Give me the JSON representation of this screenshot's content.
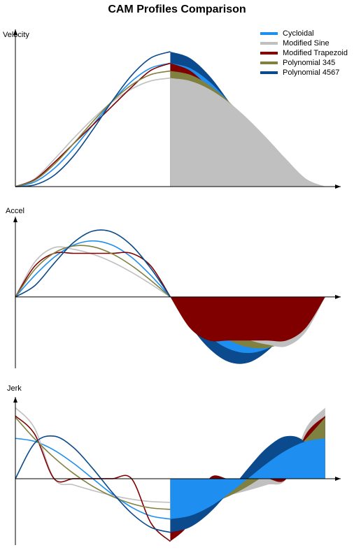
{
  "title": "CAM Profiles Comparison",
  "chart_data": [
    {
      "type": "line",
      "ylabel": "Velocity",
      "legend": "upper right",
      "xlim": [
        0,
        1.05
      ],
      "ylim": [
        0,
        2.55
      ],
      "x": [
        0,
        0.0625,
        0.125,
        0.1875,
        0.25,
        0.3125,
        0.375,
        0.4375,
        0.5,
        0.5625,
        0.625,
        0.6875,
        0.75,
        0.8125,
        0.875,
        0.9375,
        1
      ],
      "series": [
        {
          "name": "Cycloidal",
          "color": "#1e8ff0",
          "values": [
            0,
            0.076,
            0.293,
            0.617,
            1,
            1.383,
            1.707,
            1.924,
            2,
            1.924,
            1.707,
            1.383,
            1,
            0.617,
            0.293,
            0.076,
            0
          ]
        },
        {
          "name": "Modified Sine",
          "color": "#c0c0c0",
          "values": [
            0,
            0.129,
            0.44,
            0.781,
            1.1,
            1.373,
            1.583,
            1.715,
            1.76,
            1.715,
            1.583,
            1.373,
            1.1,
            0.781,
            0.44,
            0.129,
            0
          ]
        },
        {
          "name": "Modified Trapezoid",
          "color": "#800000",
          "values": [
            0,
            0.114,
            0.389,
            0.695,
            1,
            1.306,
            1.611,
            1.886,
            2,
            1.886,
            1.611,
            1.306,
            1,
            0.695,
            0.389,
            0.114,
            0
          ]
        },
        {
          "name": "Polynomial 345",
          "color": "#808040",
          "values": [
            0,
            0.103,
            0.359,
            0.696,
            1.055,
            1.385,
            1.648,
            1.817,
            1.875,
            1.817,
            1.648,
            1.385,
            1.055,
            0.696,
            0.359,
            0.103,
            0
          ]
        },
        {
          "name": "Polynomial 4567",
          "color": "#0b4a8c",
          "values": [
            0,
            0.028,
            0.183,
            0.495,
            0.923,
            1.388,
            1.803,
            2.087,
            2.188,
            2.087,
            1.803,
            1.388,
            0.923,
            0.495,
            0.183,
            0.028,
            0
          ]
        }
      ]
    },
    {
      "type": "line",
      "ylabel": "Accel",
      "xlim": [
        0,
        1.05
      ],
      "ylim": [
        -8,
        9
      ],
      "x": [
        0,
        0.0625,
        0.125,
        0.1875,
        0.25,
        0.3125,
        0.375,
        0.4375,
        0.5,
        0.5625,
        0.625,
        0.6875,
        0.75,
        0.8125,
        0.875,
        0.9375,
        1
      ],
      "series": [
        {
          "name": "Cycloidal",
          "color": "#1e8ff0",
          "values": [
            0,
            2.405,
            4.443,
            5.805,
            6.283,
            5.805,
            4.443,
            2.405,
            0,
            -2.405,
            -4.443,
            -5.805,
            -6.283,
            -5.805,
            -4.443,
            -2.405,
            0
          ]
        },
        {
          "name": "Modified Sine",
          "color": "#c0c0c0",
          "values": [
            0,
            3.909,
            5.528,
            5.34,
            4.787,
            3.909,
            2.764,
            1.431,
            0,
            -1.431,
            -2.764,
            -3.909,
            -4.787,
            -5.34,
            -5.528,
            -3.909,
            0
          ]
        },
        {
          "name": "Modified Trapezoid",
          "color": "#800000",
          "values": [
            0,
            3.456,
            4.888,
            4.888,
            4.888,
            4.888,
            4.888,
            3.456,
            0,
            -3.456,
            -4.888,
            -4.888,
            -4.888,
            -4.888,
            -4.888,
            -3.456,
            0
          ]
        },
        {
          "name": "Polynomial 345",
          "color": "#808040",
          "values": [
            0,
            3.076,
            4.922,
            5.713,
            5.625,
            4.834,
            3.516,
            1.846,
            0,
            -1.846,
            -3.516,
            -4.834,
            -5.625,
            -5.713,
            -4.922,
            -3.076,
            0
          ]
        },
        {
          "name": "Polynomial 4567",
          "color": "#0b4a8c",
          "values": [
            0,
            1.262,
            3.768,
            6.092,
            7.383,
            7.27,
            5.768,
            3.18,
            0,
            -3.18,
            -5.768,
            -7.27,
            -7.383,
            -6.092,
            -3.768,
            -1.262,
            0
          ]
        }
      ]
    },
    {
      "type": "line",
      "ylabel": "Jerk",
      "xlim": [
        0,
        1.05
      ],
      "ylim": [
        -65,
        80
      ],
      "x": [
        0,
        0.0625,
        0.125,
        0.1875,
        0.25,
        0.3125,
        0.375,
        0.4375,
        0.5,
        0.5625,
        0.625,
        0.6875,
        0.75,
        0.8125,
        0.875,
        0.9375,
        1
      ],
      "series": [
        {
          "name": "Cycloidal",
          "color": "#1e8ff0",
          "values": [
            39.48,
            36.47,
            27.92,
            15.11,
            0,
            -15.11,
            -27.92,
            -36.47,
            -39.48,
            -36.47,
            -27.92,
            -15.11,
            0,
            15.11,
            27.92,
            36.47,
            39.48
          ]
        },
        {
          "name": "Modified Sine",
          "color": "#c0c0c0",
          "values": [
            69.47,
            49.12,
            0,
            -5.99,
            -11.58,
            -16.38,
            -20.06,
            -22.37,
            -23.16,
            -22.37,
            -20.06,
            -16.38,
            -11.58,
            -5.99,
            0,
            49.12,
            69.47
          ]
        },
        {
          "name": "Modified Trapezoid",
          "color": "#800000",
          "values": [
            61.42,
            43.43,
            0,
            0,
            0,
            0,
            0,
            -43.43,
            -61.42,
            -43.43,
            0,
            0,
            0,
            0,
            0,
            43.43,
            61.42
          ]
        },
        {
          "name": "Polynomial 345",
          "color": "#808040",
          "values": [
            60,
            38.91,
            20.63,
            5.16,
            -7.5,
            -17.34,
            -24.38,
            -28.59,
            -30,
            -28.59,
            -24.38,
            -17.34,
            -7.5,
            5.16,
            20.63,
            38.91,
            60
          ]
        },
        {
          "name": "Polynomial 4567",
          "color": "#0b4a8c",
          "values": [
            0,
            34.8,
            41.63,
            30.49,
            9.84,
            -13.39,
            -33.84,
            -47.64,
            -52.5,
            -47.64,
            -33.84,
            -13.39,
            9.84,
            30.49,
            41.63,
            34.8,
            0
          ]
        }
      ]
    }
  ]
}
